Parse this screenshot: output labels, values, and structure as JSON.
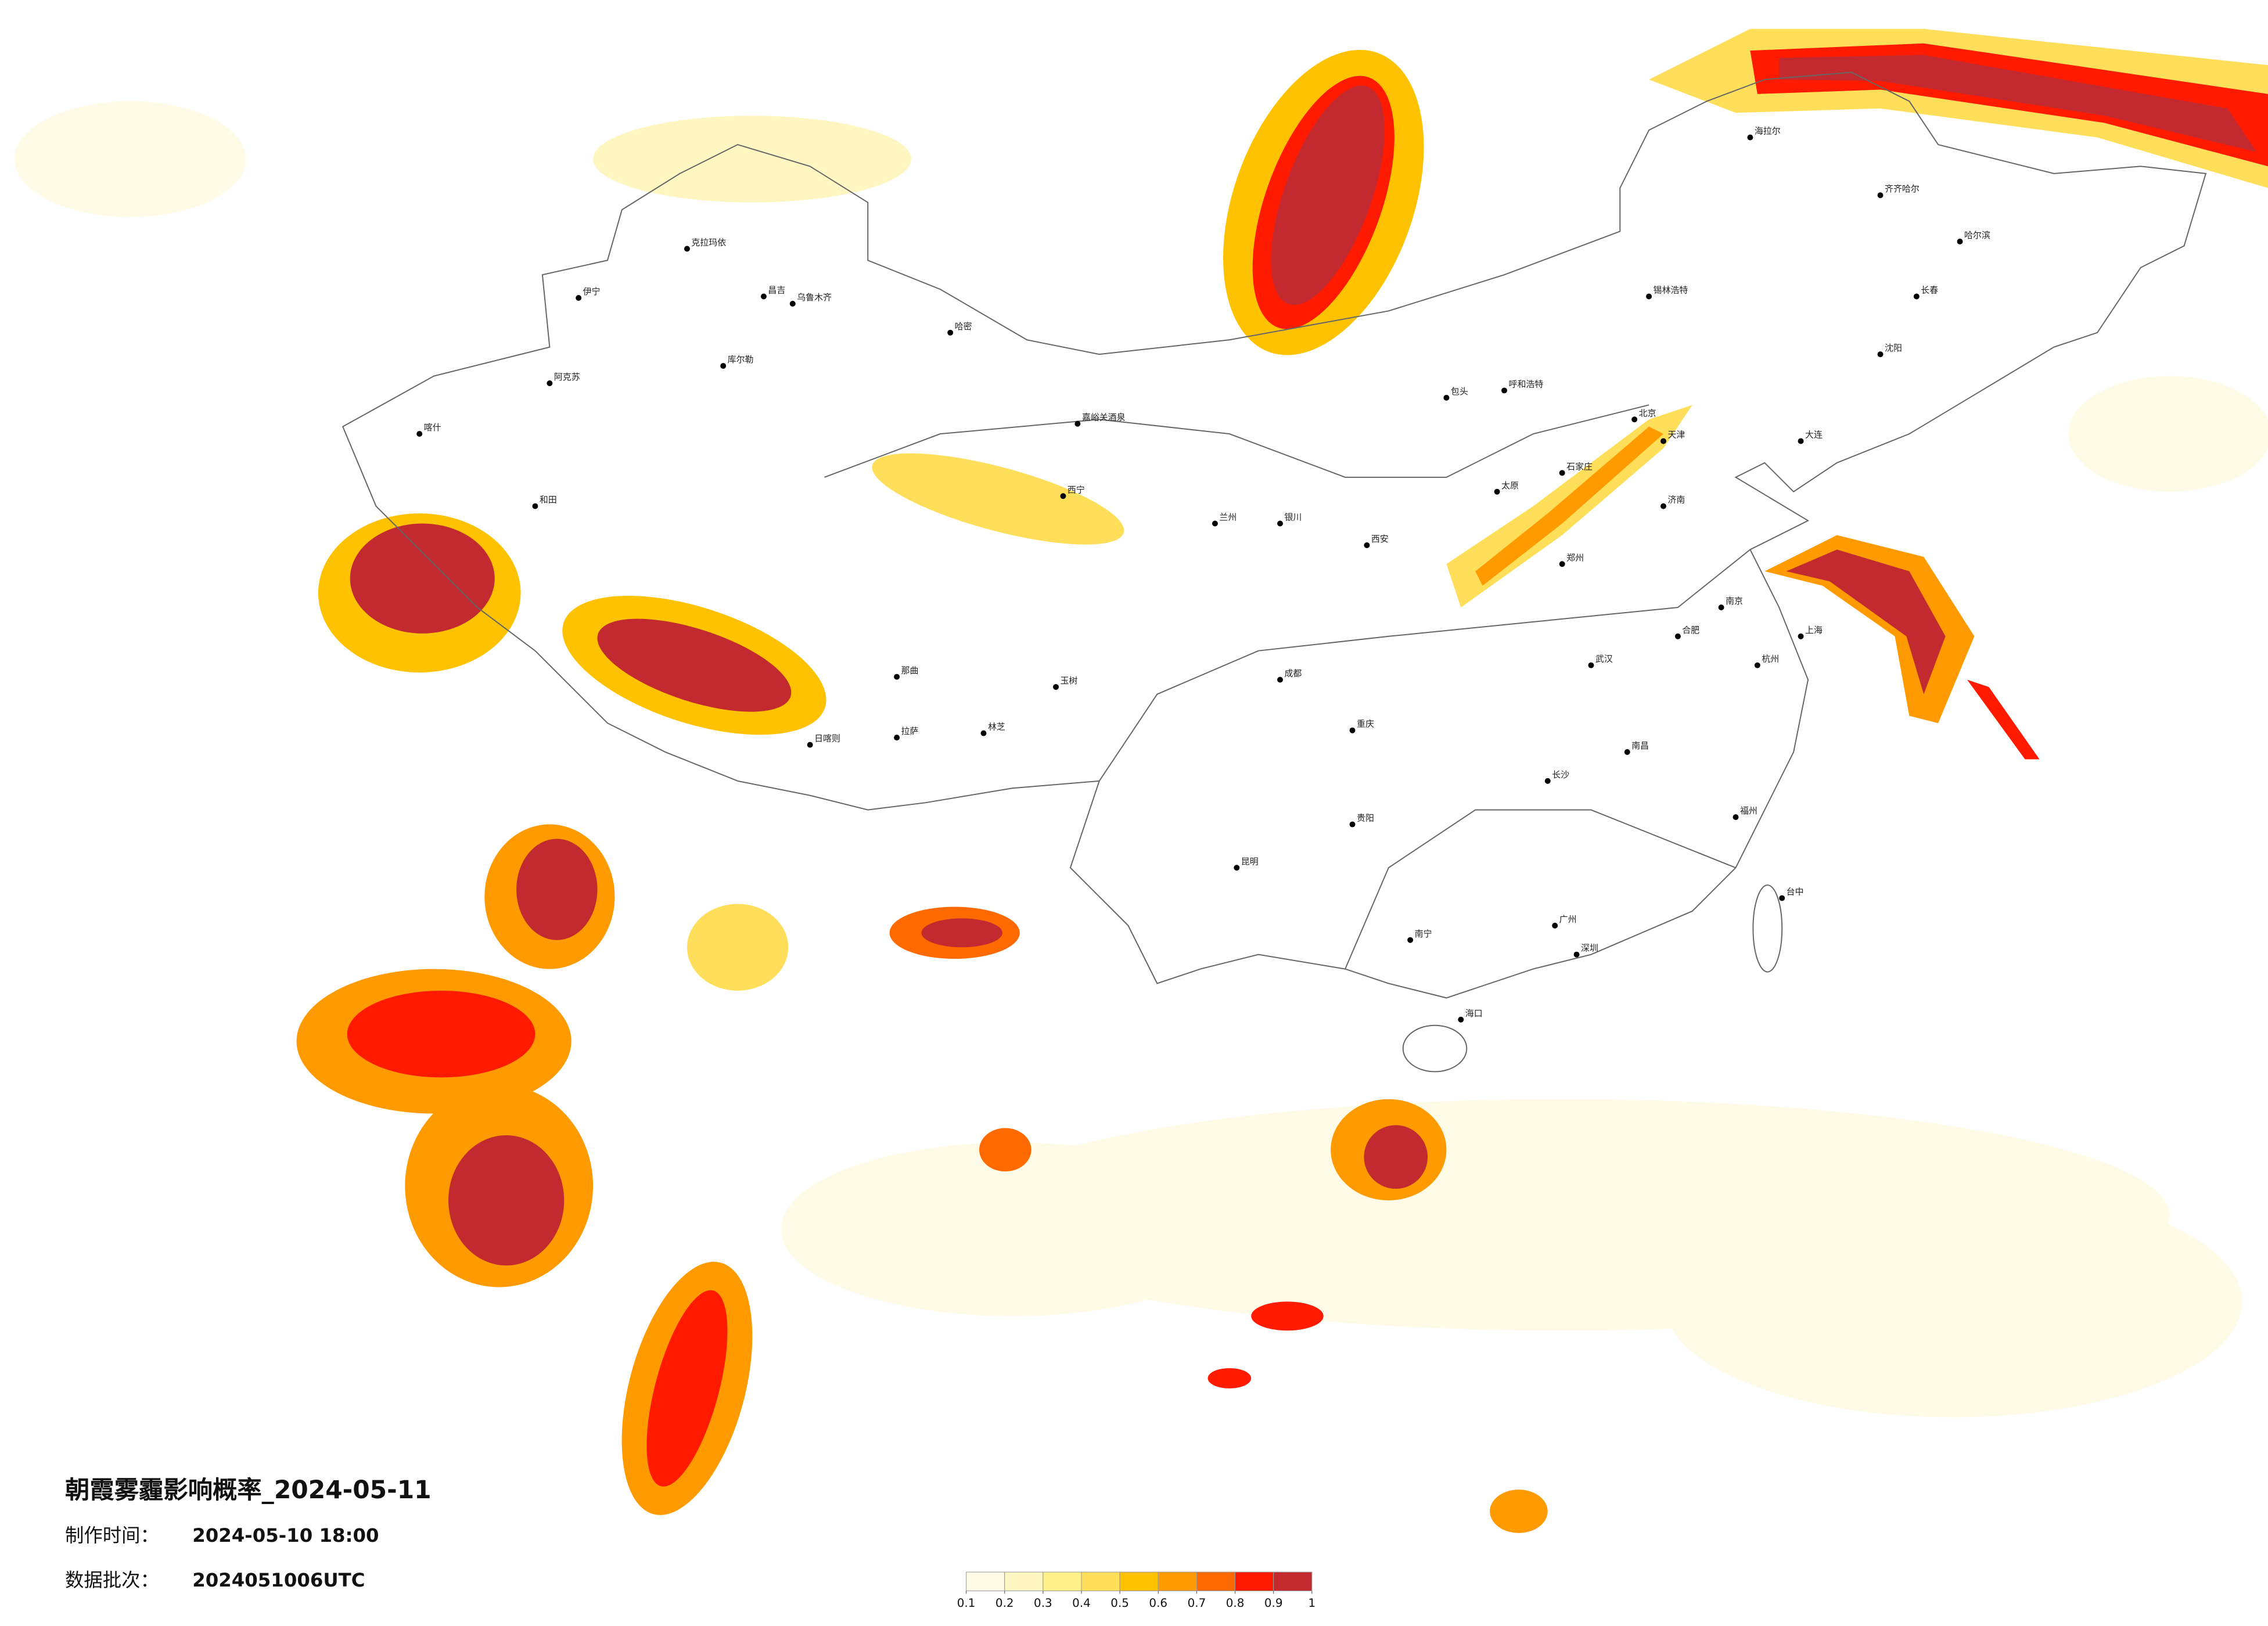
{
  "title": "朝霞雾霾影响概率_2024-05-11",
  "production_time": {
    "label": "制作时间：",
    "value": "2024-05-10 18:00"
  },
  "data_batch": {
    "label": "数据批次：",
    "value": "2024051006UTC"
  },
  "legend": {
    "colors": [
      "#fffbe6",
      "#fff6c2",
      "#fff08a",
      "#ffde5a",
      "#ffc200",
      "#ff9a00",
      "#ff6a00",
      "#ff1a00",
      "#c32a2f"
    ],
    "ticks": [
      0.1,
      0.2,
      0.3,
      0.4,
      0.5,
      0.6,
      0.7,
      0.8,
      0.9,
      1
    ]
  },
  "cities": [
    "克拉玛依",
    "伊宁",
    "昌吉",
    "乌鲁木齐",
    "哈密",
    "库尔勒",
    "阿克苏",
    "喀什",
    "和田",
    "嘉峪关酒泉",
    "西宁",
    "兰州",
    "银川",
    "呼和浩特",
    "包头",
    "北京",
    "天津",
    "石家庄",
    "太原",
    "济南",
    "郑州",
    "西安",
    "武汉",
    "长沙",
    "南昌",
    "合肥",
    "南京",
    "上海",
    "杭州",
    "福州",
    "广州",
    "深圳",
    "南宁",
    "海口",
    "昆明",
    "贵阳",
    "成都",
    "重庆",
    "拉萨",
    "日喀则",
    "林芝",
    "那曲",
    "玉树",
    "哈尔滨",
    "长春",
    "沈阳",
    "大连",
    "齐齐哈尔",
    "海拉尔",
    "锡林浩特",
    "台中"
  ]
}
